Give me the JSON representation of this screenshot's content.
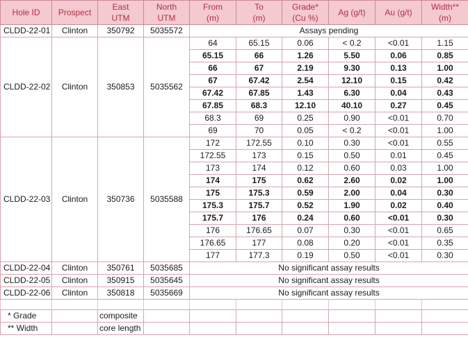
{
  "table": {
    "headers": [
      [
        "Hole ID"
      ],
      [
        "Prospect"
      ],
      [
        "East",
        "UTM"
      ],
      [
        "North",
        "UTM"
      ],
      [
        "From",
        "(m)"
      ],
      [
        "To",
        "(m)"
      ],
      [
        "Grade*",
        "(Cu %)"
      ],
      [
        "Ag (g/t)"
      ],
      [
        "Au (g/t)"
      ],
      [
        "Width**",
        "(m)"
      ]
    ],
    "groups": [
      {
        "hole_id": "CLDD-22-01",
        "prospect": "Clinton",
        "east": "350792",
        "north": "5035572",
        "note": "Assays pending",
        "rows": []
      },
      {
        "hole_id": "CLDD-22-02",
        "prospect": "Clinton",
        "east": "350853",
        "north": "5035562",
        "note": "",
        "rows": [
          {
            "bold": false,
            "values": [
              "64",
              "65.15",
              "0.06",
              "< 0.2",
              "<0.01",
              "1.15"
            ]
          },
          {
            "bold": true,
            "values": [
              "65.15",
              "66",
              "1.26",
              "5.50",
              "0.06",
              "0.85"
            ]
          },
          {
            "bold": true,
            "values": [
              "66",
              "67",
              "2.19",
              "9.30",
              "0.13",
              "1.00"
            ]
          },
          {
            "bold": true,
            "values": [
              "67",
              "67.42",
              "2.54",
              "12.10",
              "0.15",
              "0.42"
            ]
          },
          {
            "bold": true,
            "values": [
              "67.42",
              "67.85",
              "1.43",
              "6.30",
              "0.04",
              "0.43"
            ]
          },
          {
            "bold": true,
            "values": [
              "67.85",
              "68.3",
              "12.10",
              "40.10",
              "0.27",
              "0.45"
            ]
          },
          {
            "bold": false,
            "values": [
              "68.3",
              "69",
              "0.25",
              "0.90",
              "<0.01",
              "0.70"
            ]
          },
          {
            "bold": false,
            "values": [
              "69",
              "70",
              "0.05",
              "< 0.2",
              "<0.01",
              "1.00"
            ]
          }
        ]
      },
      {
        "hole_id": "CLDD-22-03",
        "prospect": "Clinton",
        "east": "350736",
        "north": "5035588",
        "note": "",
        "rows": [
          {
            "bold": false,
            "values": [
              "172",
              "172.55",
              "0.10",
              "0.30",
              "<0.01",
              "0.55"
            ]
          },
          {
            "bold": false,
            "values": [
              "172.55",
              "173",
              "0.15",
              "0.50",
              "0.01",
              "0.45"
            ]
          },
          {
            "bold": false,
            "values": [
              "173",
              "174",
              "0.12",
              "0.60",
              "0.03",
              "1.00"
            ]
          },
          {
            "bold": true,
            "values": [
              "174",
              "175",
              "0.62",
              "2.60",
              "0.02",
              "1.00"
            ]
          },
          {
            "bold": true,
            "values": [
              "175",
              "175.3",
              "0.59",
              "2.00",
              "0.04",
              "0.30"
            ]
          },
          {
            "bold": true,
            "values": [
              "175.3",
              "175.7",
              "0.52",
              "1.90",
              "0.02",
              "0.40"
            ]
          },
          {
            "bold": true,
            "values": [
              "175.7",
              "176",
              "0.24",
              "0.60",
              "<0.01",
              "0.30"
            ]
          },
          {
            "bold": false,
            "values": [
              "176",
              "176.65",
              "0.07",
              "0.30",
              "<0.01",
              "0.65"
            ]
          },
          {
            "bold": false,
            "values": [
              "176.65",
              "177",
              "0.08",
              "0.20",
              "<0.01",
              "0.35"
            ]
          },
          {
            "bold": false,
            "values": [
              "177",
              "177.3",
              "0.19",
              "0.50",
              "<0.01",
              "0.30"
            ]
          }
        ]
      },
      {
        "hole_id": "CLDD-22-04",
        "prospect": "Clinton",
        "east": "350761",
        "north": "5035685",
        "note": "No significant assay results",
        "rows": []
      },
      {
        "hole_id": "CLDD-22-05",
        "prospect": "Clinton",
        "east": "350915",
        "north": "5035645",
        "note": "No significant assay results",
        "rows": []
      },
      {
        "hole_id": "CLDD-22-06",
        "prospect": "Clinton",
        "east": "350818",
        "north": "5035669",
        "note": "No significant assay results",
        "rows": []
      }
    ],
    "footnotes": [
      {
        "label": "* Grade",
        "text": "composite"
      },
      {
        "label": "** Width",
        "text": "core length"
      }
    ]
  }
}
